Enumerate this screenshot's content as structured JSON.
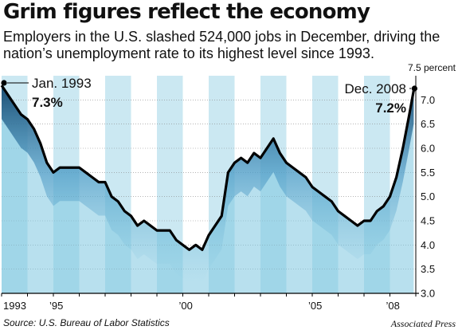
{
  "header": {
    "title": "Grim figures reflect the economy",
    "subtitle": "Employers in the U.S. slashed 524,000 jobs in December, driving the nation’s unemployment rate to its highest level since 1993."
  },
  "footer": {
    "source": "Source: U.S. Bureau of Labor Statistics",
    "credit": "Associated Press"
  },
  "chart_data": {
    "type": "area",
    "title": "Grim figures reflect the economy",
    "xlabel": "",
    "ylabel": "",
    "unit_label": "7.5 percent",
    "xlim": [
      1993.0,
      2009.0
    ],
    "ylim": [
      3.0,
      7.5
    ],
    "y_ticks": [
      7.0,
      6.5,
      6.0,
      5.5,
      5.0,
      4.5,
      4.0,
      3.5,
      3.0
    ],
    "x_ticks": [
      {
        "label": "1993",
        "value": 1993.0
      },
      {
        "label": "’95",
        "value": 1995.0
      },
      {
        "label": "’00",
        "value": 2000.0
      },
      {
        "label": "’05",
        "value": 2005.0
      },
      {
        "label": "’08",
        "value": 2008.0
      }
    ],
    "grid": true,
    "colors": {
      "line": "#000000",
      "fill": "#7ec6e0",
      "stripe": "#cbe8f2",
      "grid": "#888888"
    },
    "annotations": [
      {
        "name": "Jan. 1993",
        "value_label": "7.3%",
        "x": 1993.0,
        "y": 7.3
      },
      {
        "name": "Dec. 2008",
        "value_label": "7.2%",
        "x": 2008.92,
        "y": 7.2
      }
    ],
    "series": [
      {
        "name": "",
        "x": [
          1993.0,
          1993.25,
          1993.5,
          1993.75,
          1994.0,
          1994.25,
          1994.5,
          1994.75,
          1995.0,
          1995.25,
          1995.5,
          1995.75,
          1996.0,
          1996.25,
          1996.5,
          1996.75,
          1997.0,
          1997.25,
          1997.5,
          1997.75,
          1998.0,
          1998.25,
          1998.5,
          1998.75,
          1999.0,
          1999.25,
          1999.5,
          1999.75,
          2000.0,
          2000.25,
          2000.5,
          2000.75,
          2001.0,
          2001.25,
          2001.5,
          2001.75,
          2002.0,
          2002.25,
          2002.5,
          2002.75,
          2003.0,
          2003.25,
          2003.5,
          2003.75,
          2004.0,
          2004.25,
          2004.5,
          2004.75,
          2005.0,
          2005.25,
          2005.5,
          2005.75,
          2006.0,
          2006.25,
          2006.5,
          2006.75,
          2007.0,
          2007.25,
          2007.5,
          2007.75,
          2008.0,
          2008.25,
          2008.5,
          2008.75,
          2008.92
        ],
        "values": [
          7.3,
          7.1,
          6.9,
          6.7,
          6.6,
          6.4,
          6.1,
          5.7,
          5.5,
          5.6,
          5.6,
          5.6,
          5.6,
          5.5,
          5.4,
          5.3,
          5.3,
          5.0,
          4.9,
          4.7,
          4.6,
          4.4,
          4.5,
          4.4,
          4.3,
          4.3,
          4.3,
          4.1,
          4.0,
          3.9,
          4.0,
          3.9,
          4.2,
          4.4,
          4.6,
          5.5,
          5.7,
          5.8,
          5.7,
          5.9,
          5.8,
          6.0,
          6.2,
          5.9,
          5.7,
          5.6,
          5.5,
          5.4,
          5.2,
          5.1,
          5.0,
          4.9,
          4.7,
          4.6,
          4.5,
          4.4,
          4.5,
          4.5,
          4.7,
          4.8,
          5.0,
          5.4,
          6.0,
          6.7,
          7.2
        ]
      }
    ]
  }
}
